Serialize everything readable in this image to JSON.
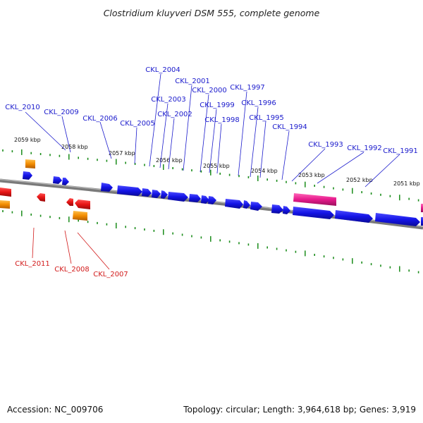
{
  "title": "Clostridium kluyveri DSM 555, complete genome",
  "footer": {
    "accession_label": "Accession:",
    "accession": "NC_009706",
    "topology_label": "Topology:",
    "topology": "circular",
    "length_label": "Length:",
    "length": "3,964,618 bp",
    "genes_label": "Genes:",
    "genes": "3,919"
  },
  "colors": {
    "backbone": "#7a7a7a",
    "plus_gene": "#1414e6",
    "minus_gene": "#e61414",
    "orange_feature": "#f28c00",
    "pink_feature": "#e61a8c",
    "ticks": "#1a8c1a",
    "plus_label": "#1a1acc",
    "minus_label": "#d21a1a"
  },
  "ticks": [
    "2059 kbp",
    "2058 kbp",
    "2057 kbp",
    "2056 kbp",
    "2055 kbp",
    "2054 kbp",
    "2053 kbp",
    "2052 kbp",
    "2051 kbp"
  ],
  "plus_genes": [
    "CKL_2010",
    "CKL_2009",
    "CKL_2006",
    "CKL_2005",
    "CKL_2004",
    "CKL_2003",
    "CKL_2002",
    "CKL_2001",
    "CKL_2000",
    "CKL_1999",
    "CKL_1998",
    "CKL_1997",
    "CKL_1996",
    "CKL_1995",
    "CKL_1994",
    "CKL_1993",
    "CKL_1992",
    "CKL_1991"
  ],
  "minus_genes": [
    "CKL_2011",
    "CKL_2008",
    "CKL_2007"
  ]
}
